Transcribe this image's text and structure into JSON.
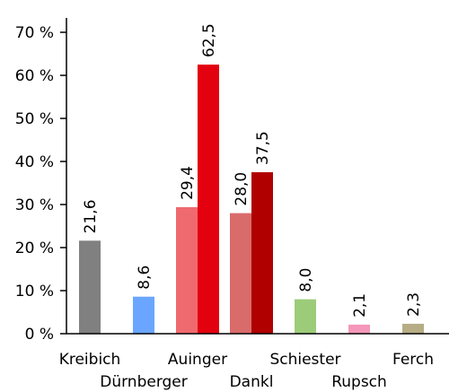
{
  "chart_data": {
    "type": "bar",
    "ylim": [
      0,
      70
    ],
    "y_ticks": [
      "0 %",
      "10 %",
      "20 %",
      "30 %",
      "40 %",
      "50 %",
      "60 %",
      "70 %"
    ],
    "grid": false,
    "categories": [
      "Kreibich",
      "Dürnberger",
      "Auinger",
      "Dankl",
      "Schiester",
      "Rupsch",
      "Ferch"
    ],
    "groups": [
      {
        "category": "Kreibich",
        "bars": [
          {
            "value": 21.6,
            "label": "21,6",
            "color": "#808080"
          }
        ]
      },
      {
        "category": "Dürnberger",
        "bars": [
          {
            "value": 8.6,
            "label": "8,6",
            "color": "#6aa6ff"
          }
        ]
      },
      {
        "category": "Auinger",
        "bars": [
          {
            "value": 29.4,
            "label": "29,4",
            "color": "#ef6a6e"
          },
          {
            "value": 62.5,
            "label": "62,5",
            "color": "#e3000f"
          }
        ]
      },
      {
        "category": "Dankl",
        "bars": [
          {
            "value": 28.0,
            "label": "28,0",
            "color": "#d96b6b"
          },
          {
            "value": 37.5,
            "label": "37,5",
            "color": "#b00000"
          }
        ]
      },
      {
        "category": "Schiester",
        "bars": [
          {
            "value": 8.0,
            "label": "8,0",
            "color": "#9ccc7a"
          }
        ]
      },
      {
        "category": "Rupsch",
        "bars": [
          {
            "value": 2.1,
            "label": "2,1",
            "color": "#f497b8"
          }
        ]
      },
      {
        "category": "Ferch",
        "bars": [
          {
            "value": 2.3,
            "label": "2,3",
            "color": "#b6ad84"
          }
        ]
      }
    ]
  }
}
